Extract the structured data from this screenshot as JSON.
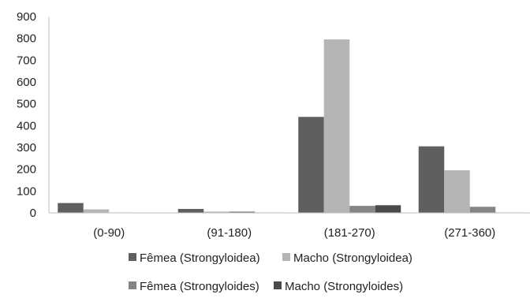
{
  "chart_data": {
    "type": "bar",
    "title": "",
    "xlabel": "",
    "ylabel": "",
    "ylim": [
      0,
      900
    ],
    "yticks": [
      0,
      100,
      200,
      300,
      400,
      500,
      600,
      700,
      800,
      900
    ],
    "grid": false,
    "legend_position": "bottom",
    "categories": [
      "(0-90)",
      "(91-180)",
      "(181-270)",
      "(271-360)"
    ],
    "series": [
      {
        "name": "Fêmea (Strongyloidea)",
        "color": "#5f5f5f",
        "values": [
          45,
          18,
          440,
          305
        ]
      },
      {
        "name": "Macho (Strongyloidea)",
        "color": "#b5b5b5",
        "values": [
          16,
          6,
          795,
          195
        ]
      },
      {
        "name": "Fêmea (Strongyloides)",
        "color": "#858585",
        "values": [
          2,
          6,
          32,
          28
        ]
      },
      {
        "name": "Macho (Strongyloides)",
        "color": "#4a4a4a",
        "values": [
          1,
          2,
          35,
          2
        ]
      }
    ]
  }
}
